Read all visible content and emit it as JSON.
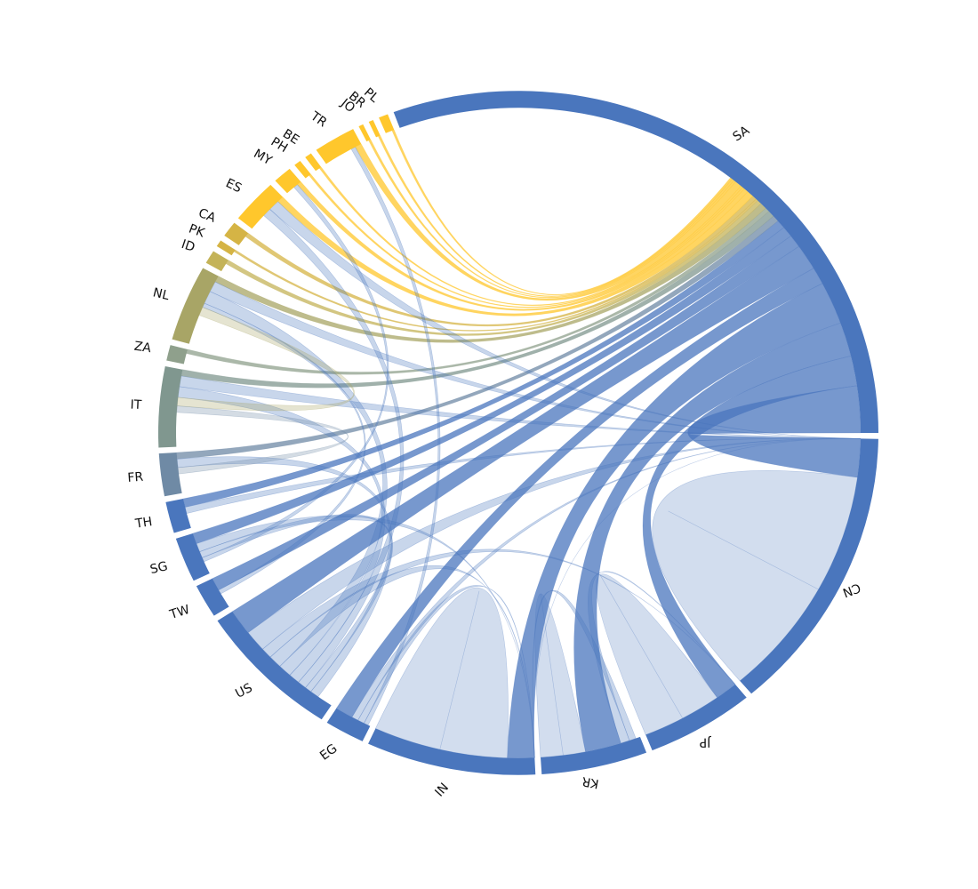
{
  "chart_data": {
    "type": "chord",
    "title": "",
    "colors": {
      "blue": "#4a76bd",
      "gold": "#ffc72c",
      "gray_blue": "#6f8aa5",
      "gray": "#80978f",
      "olive": "#a8a566",
      "olive_gold": "#d5b445"
    },
    "nodes": [
      {
        "id": "SA",
        "label": "SA",
        "size": 290,
        "color": "#4a76bd"
      },
      {
        "id": "PL",
        "label": "PL",
        "size": 4,
        "color": "#ffc72c"
      },
      {
        "id": "BR",
        "label": "BR",
        "size": 2,
        "color": "#ffc72c"
      },
      {
        "id": "JO",
        "label": "JO",
        "size": 2,
        "color": "#ffc72c"
      },
      {
        "id": "TR",
        "label": "TR",
        "size": 18,
        "color": "#ffc72c"
      },
      {
        "id": "BE",
        "label": "BE",
        "size": 3,
        "color": "#ffc72c"
      },
      {
        "id": "PH",
        "label": "PH",
        "size": 3,
        "color": "#ffc72c"
      },
      {
        "id": "MY",
        "label": "MY",
        "size": 8,
        "color": "#ffc72c"
      },
      {
        "id": "ES",
        "label": "ES",
        "size": 20,
        "color": "#ffc72c"
      },
      {
        "id": "CA",
        "label": "CA",
        "size": 7,
        "color": "#d5b445"
      },
      {
        "id": "PK",
        "label": "PK",
        "size": 3,
        "color": "#d5b445"
      },
      {
        "id": "ID",
        "label": "ID",
        "size": 6,
        "color": "#c4b358"
      },
      {
        "id": "NL",
        "label": "NL",
        "size": 34,
        "color": "#a8a566"
      },
      {
        "id": "ZA",
        "label": "ZA",
        "size": 7,
        "color": "#8fa08c"
      },
      {
        "id": "IT",
        "label": "IT",
        "size": 36,
        "color": "#80978f"
      },
      {
        "id": "FR",
        "label": "FR",
        "size": 19,
        "color": "#6f8aa5"
      },
      {
        "id": "TH",
        "label": "TH",
        "size": 14,
        "color": "#4a76bd"
      },
      {
        "id": "SG",
        "label": "SG",
        "size": 20,
        "color": "#4a76bd"
      },
      {
        "id": "TW",
        "label": "TW",
        "size": 15,
        "color": "#4a76bd"
      },
      {
        "id": "US",
        "label": "US",
        "size": 62,
        "color": "#4a76bd"
      },
      {
        "id": "EG",
        "label": "EG",
        "size": 17,
        "color": "#4a76bd"
      },
      {
        "id": "IN",
        "label": "IN",
        "size": 72,
        "color": "#4a76bd"
      },
      {
        "id": "KR",
        "label": "KR",
        "size": 45,
        "color": "#4a76bd"
      },
      {
        "id": "JP",
        "label": "JP",
        "size": 46,
        "color": "#4a76bd"
      },
      {
        "id": "CN",
        "label": "CN",
        "size": 128,
        "color": "#4a76bd"
      }
    ],
    "links": [
      {
        "source": "CN",
        "target": "CN",
        "value": 55
      },
      {
        "source": "JP",
        "target": "JP",
        "value": 18
      },
      {
        "source": "IN",
        "target": "IN",
        "value": 30
      },
      {
        "source": "KR",
        "target": "KR",
        "value": 10
      },
      {
        "source": "CN",
        "target": "SA",
        "value": 22
      },
      {
        "source": "JP",
        "target": "SA",
        "value": 14
      },
      {
        "source": "KR",
        "target": "SA",
        "value": 16
      },
      {
        "source": "IN",
        "target": "SA",
        "value": 20
      },
      {
        "source": "EG",
        "target": "SA",
        "value": 8
      },
      {
        "source": "US",
        "target": "SA",
        "value": 12
      },
      {
        "source": "TW",
        "target": "SA",
        "value": 6
      },
      {
        "source": "SG",
        "target": "SA",
        "value": 5
      },
      {
        "source": "TH",
        "target": "SA",
        "value": 4
      },
      {
        "source": "FR",
        "target": "SA",
        "value": 3
      },
      {
        "source": "IT",
        "target": "SA",
        "value": 3
      },
      {
        "source": "ZA",
        "target": "SA",
        "value": 2
      },
      {
        "source": "NL",
        "target": "SA",
        "value": 3
      },
      {
        "source": "ID",
        "target": "SA",
        "value": 2
      },
      {
        "source": "PK",
        "target": "SA",
        "value": 1
      },
      {
        "source": "CA",
        "target": "SA",
        "value": 2
      },
      {
        "source": "ES",
        "target": "SA",
        "value": 3
      },
      {
        "source": "MY",
        "target": "SA",
        "value": 2
      },
      {
        "source": "PH",
        "target": "SA",
        "value": 1
      },
      {
        "source": "BE",
        "target": "SA",
        "value": 1
      },
      {
        "source": "TR",
        "target": "SA",
        "value": 3
      },
      {
        "source": "JO",
        "target": "SA",
        "value": 1
      },
      {
        "source": "BR",
        "target": "SA",
        "value": 1
      },
      {
        "source": "PL",
        "target": "SA",
        "value": 1
      },
      {
        "source": "CN",
        "target": "IN",
        "value": 8
      },
      {
        "source": "CN",
        "target": "US",
        "value": 10
      },
      {
        "source": "CN",
        "target": "NL",
        "value": 5
      },
      {
        "source": "CN",
        "target": "ES",
        "value": 5
      },
      {
        "source": "CN",
        "target": "IT",
        "value": 5
      },
      {
        "source": "CN",
        "target": "TH",
        "value": 3
      },
      {
        "source": "CN",
        "target": "EG",
        "value": 3
      },
      {
        "source": "JP",
        "target": "KR",
        "value": 4
      },
      {
        "source": "JP",
        "target": "US",
        "value": 5
      },
      {
        "source": "KR",
        "target": "IN",
        "value": 3
      },
      {
        "source": "IN",
        "target": "EG",
        "value": 3
      },
      {
        "source": "IN",
        "target": "US",
        "value": 6
      },
      {
        "source": "IN",
        "target": "SG",
        "value": 4
      },
      {
        "source": "US",
        "target": "NL",
        "value": 6
      },
      {
        "source": "US",
        "target": "IT",
        "value": 5
      },
      {
        "source": "US",
        "target": "ES",
        "value": 4
      },
      {
        "source": "US",
        "target": "SG",
        "value": 3
      },
      {
        "source": "US",
        "target": "FR",
        "value": 4
      },
      {
        "source": "EG",
        "target": "TR",
        "value": 2
      },
      {
        "source": "TW",
        "target": "NL",
        "value": 2
      },
      {
        "source": "SG",
        "target": "MY",
        "value": 2
      },
      {
        "source": "NL",
        "target": "IT",
        "value": 4
      },
      {
        "source": "FR",
        "target": "IT",
        "value": 3
      }
    ]
  }
}
